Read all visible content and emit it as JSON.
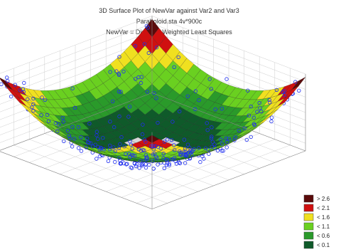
{
  "chart_data": {
    "type": "surface3d",
    "title": "3D Surface Plot of NewVar against Var2 and Var3",
    "subtitle_1": "Paraboloid.sta 4v*900c",
    "subtitle_2": "NewVar = Distance Weighted Least Squares",
    "x_label": "",
    "y_label": "",
    "z_label": "",
    "grid": true,
    "legend_position": "bottom-right",
    "legend": [
      {
        "label": "> 2.6",
        "color": "#5a0a0a"
      },
      {
        "label": "< 2.1",
        "color": "#d01010"
      },
      {
        "label": "< 1.6",
        "color": "#f0e020"
      },
      {
        "label": "< 1.1",
        "color": "#6ad020"
      },
      {
        "label": "< 0.6",
        "color": "#2a9a2a"
      },
      {
        "label": "< 0.1",
        "color": "#0f5a2a"
      }
    ],
    "surface": {
      "function": "x^2 + y^2",
      "x_range": [
        -1.2,
        1.2
      ],
      "y_range": [
        -1.2,
        1.2
      ],
      "z_range": [
        0,
        3
      ]
    },
    "points_color": "#1f2ef0"
  }
}
